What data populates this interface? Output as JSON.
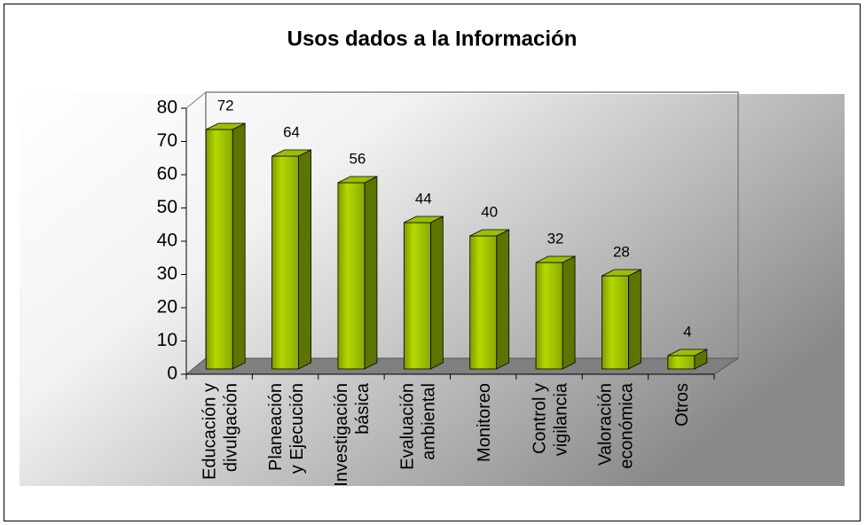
{
  "chart_data": {
    "type": "bar3d",
    "title": "Usos dados a la Información",
    "categories": [
      [
        "Educación y",
        "divulgación"
      ],
      [
        "Planeación",
        "y Ejecución"
      ],
      [
        "Investigación",
        "básica"
      ],
      [
        "Evaluación",
        "ambiental"
      ],
      [
        "Monitoreo"
      ],
      [
        "Control y",
        "vigilancia"
      ],
      [
        "Valoración",
        "económica"
      ],
      [
        "Otros"
      ]
    ],
    "values": [
      72,
      64,
      56,
      44,
      40,
      32,
      28,
      4
    ],
    "color": "#99c000",
    "ylim": [
      0,
      80
    ],
    "yticks": [
      0,
      10,
      20,
      30,
      40,
      50,
      60,
      70,
      80
    ]
  }
}
